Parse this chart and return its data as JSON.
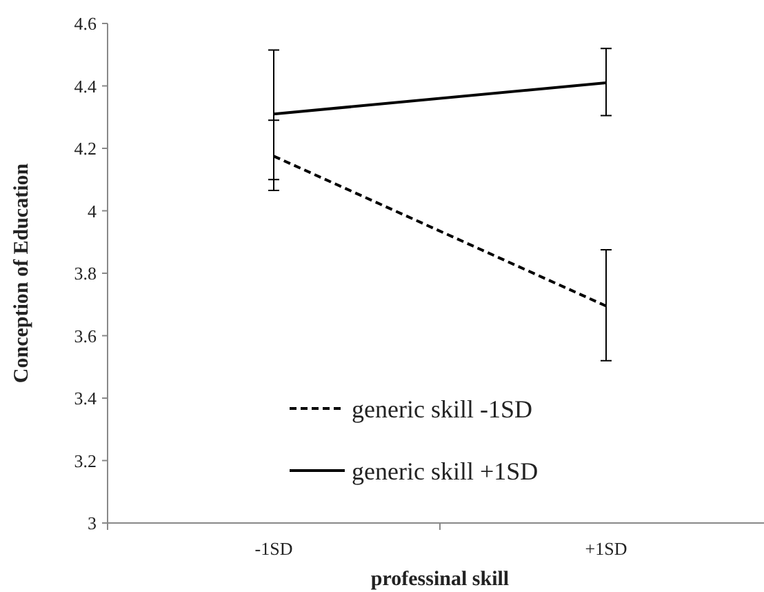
{
  "chart_data": {
    "type": "line",
    "xlabel": "professinal skill",
    "ylabel": "Conception of Education",
    "categories": [
      "-1SD",
      "+1SD"
    ],
    "series": [
      {
        "name": "generic skill -1SD",
        "color": "#000000",
        "line_style": "dashed",
        "values": [
          4.175,
          3.695
        ],
        "errors": [
          [
            4.065,
            4.29
          ],
          [
            3.52,
            3.875
          ]
        ]
      },
      {
        "name": "generic skill +1SD",
        "color": "#000000",
        "line_style": "solid",
        "values": [
          4.31,
          4.41
        ],
        "errors": [
          [
            4.1,
            4.515
          ],
          [
            4.305,
            4.52
          ]
        ]
      }
    ],
    "ylim": [
      3,
      4.6
    ],
    "yticks": [
      3,
      3.2,
      3.4,
      3.6,
      3.8,
      4,
      4.2,
      4.4,
      4.6
    ],
    "grid": false,
    "legend": "bottom",
    "marker": "none"
  }
}
